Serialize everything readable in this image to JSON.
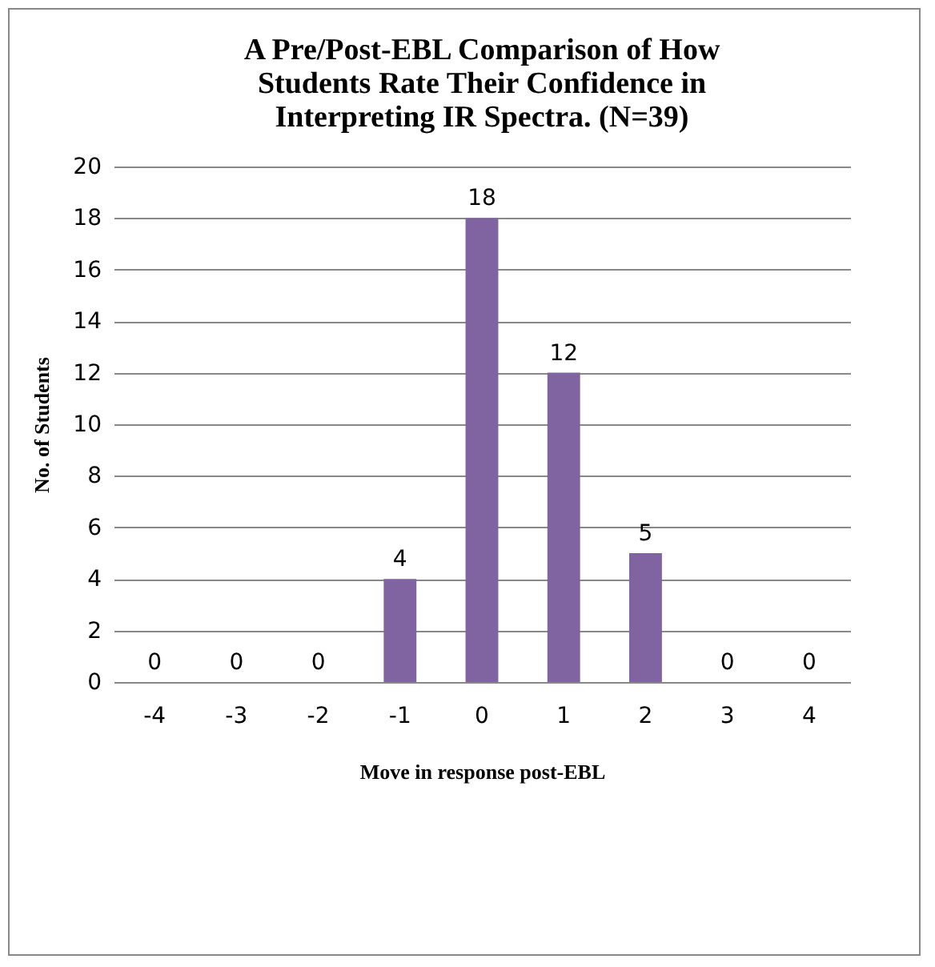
{
  "chart_data": {
    "type": "bar",
    "title": "A Pre/Post-EBL Comparison of How Students Rate Their Confidence in Interpreting IR Spectra. (N=39)",
    "xlabel": "Move in response post-EBL",
    "ylabel": "No. of Students",
    "categories": [
      "-4",
      "-3",
      "-2",
      "-1",
      "0",
      "1",
      "2",
      "3",
      "4"
    ],
    "values": [
      0,
      0,
      0,
      4,
      18,
      12,
      5,
      0,
      0
    ],
    "color": "#8064a2",
    "ylim": [
      0,
      20
    ],
    "yticks": [
      0,
      2,
      4,
      6,
      8,
      10,
      12,
      14,
      16,
      18,
      20
    ],
    "grid": "y",
    "data_labels": true,
    "legend": false
  }
}
